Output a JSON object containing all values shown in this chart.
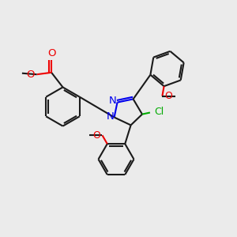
{
  "bg_color": "#ebebeb",
  "bond_color": "#1a1a1a",
  "n_color": "#0000ee",
  "o_color": "#ee0000",
  "cl_color": "#00aa00",
  "lw": 1.5,
  "fs": 8.5,
  "xlim": [
    0,
    10
  ],
  "ylim": [
    0,
    10
  ]
}
